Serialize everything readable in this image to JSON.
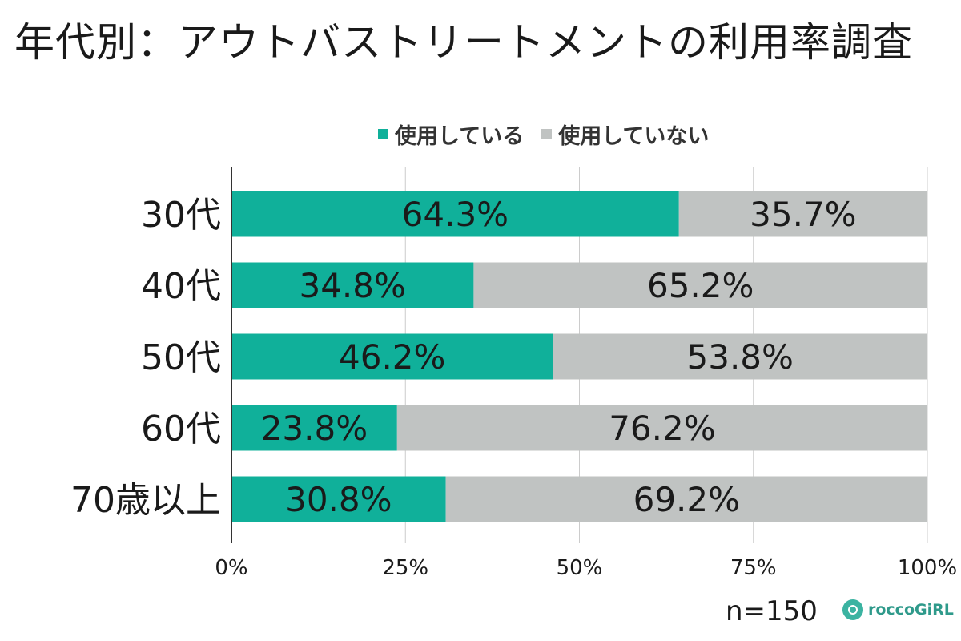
{
  "title": "年代別：アウトバストリートメントの利用率調査",
  "footer": {
    "sample_size": "n=150",
    "brand": "roccoGiRL"
  },
  "colors": {
    "used": "#10b09a",
    "not_used": "#c0c3c2",
    "grid": "#cccccc",
    "axis": "#333333"
  },
  "chart_data": {
    "type": "bar",
    "orientation": "horizontal",
    "stacked": true,
    "title": "年代別：アウトバストリートメントの利用率調査",
    "categories": [
      "30代",
      "40代",
      "50代",
      "60代",
      "70歳以上"
    ],
    "series": [
      {
        "name": "使用している",
        "color": "#10b09a",
        "values": [
          64.3,
          34.8,
          46.2,
          23.8,
          30.8
        ],
        "labels": [
          "64.3%",
          "34.8%",
          "46.2%",
          "23.8%",
          "30.8%"
        ]
      },
      {
        "name": "使用していない",
        "color": "#c0c3c2",
        "values": [
          35.7,
          65.2,
          53.8,
          76.2,
          69.2
        ],
        "labels": [
          "35.7%",
          "65.2%",
          "53.8%",
          "76.2%",
          "69.2%"
        ]
      }
    ],
    "xlim": [
      0,
      100
    ],
    "x_ticks": [
      "0%",
      "25%",
      "50%",
      "75%",
      "100%"
    ],
    "grid": true,
    "legend_position": "top-center",
    "xlabel": "",
    "ylabel": ""
  }
}
